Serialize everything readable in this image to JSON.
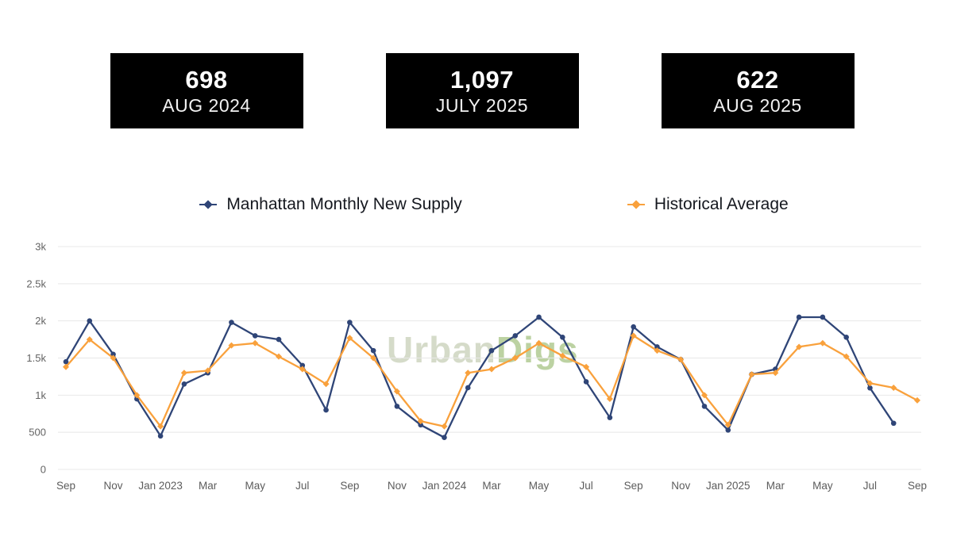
{
  "stats": [
    {
      "value": "698",
      "label": "AUG 2024"
    },
    {
      "value": "1,097",
      "label": "JULY 2025"
    },
    {
      "value": "622",
      "label": "AUG 2025"
    }
  ],
  "watermark": {
    "part1": "Urban",
    "part2": "Digs"
  },
  "chart_data": {
    "type": "line",
    "title": "",
    "xlabel": "",
    "ylabel": "",
    "grid": "horizontal",
    "legend_position": "top",
    "ylim": [
      0,
      3000
    ],
    "yticks": [
      {
        "value": 0,
        "label": "0"
      },
      {
        "value": 500,
        "label": "500"
      },
      {
        "value": 1000,
        "label": "1k"
      },
      {
        "value": 1500,
        "label": "1.5k"
      },
      {
        "value": 2000,
        "label": "2k"
      },
      {
        "value": 2500,
        "label": "2.5k"
      },
      {
        "value": 3000,
        "label": "3k"
      }
    ],
    "x": [
      "Sep 2022",
      "Oct 2022",
      "Nov 2022",
      "Dec 2022",
      "Jan 2023",
      "Feb 2023",
      "Mar 2023",
      "Apr 2023",
      "May 2023",
      "Jun 2023",
      "Jul 2023",
      "Aug 2023",
      "Sep 2023",
      "Oct 2023",
      "Nov 2023",
      "Dec 2023",
      "Jan 2024",
      "Feb 2024",
      "Mar 2024",
      "Apr 2024",
      "May 2024",
      "Jun 2024",
      "Jul 2024",
      "Aug 2024",
      "Sep 2024",
      "Oct 2024",
      "Nov 2024",
      "Dec 2024",
      "Jan 2025",
      "Feb 2025",
      "Mar 2025",
      "Apr 2025",
      "May 2025",
      "Jun 2025",
      "Jul 2025",
      "Aug 2025",
      "Sep 2025"
    ],
    "x_tick_every": 2,
    "x_tick_labels": [
      "Sep",
      "Nov",
      "Jan 2023",
      "Mar",
      "May",
      "Jul",
      "Sep",
      "Nov",
      "Jan 2024",
      "Mar",
      "May",
      "Jul",
      "Sep",
      "Nov",
      "Jan 2025",
      "Mar",
      "May",
      "Jul",
      "Sep"
    ],
    "series": [
      {
        "name": "Manhattan Monthly New Supply",
        "color": "#2f4577",
        "marker": "circle",
        "values": [
          1450,
          2000,
          1550,
          950,
          450,
          1150,
          1300,
          1980,
          1800,
          1750,
          1400,
          800,
          1980,
          1600,
          850,
          600,
          430,
          1100,
          1600,
          1800,
          2050,
          1780,
          1180,
          698,
          1920,
          1650,
          1480,
          850,
          530,
          1280,
          1350,
          2050,
          2050,
          1780,
          1097,
          622,
          null
        ]
      },
      {
        "name": "Historical Average",
        "color": "#f9a13c",
        "marker": "diamond",
        "values": [
          1380,
          1750,
          1500,
          1000,
          580,
          1300,
          1330,
          1670,
          1700,
          1520,
          1350,
          1150,
          1770,
          1500,
          1050,
          650,
          580,
          1300,
          1350,
          1500,
          1700,
          1530,
          1380,
          950,
          1800,
          1600,
          1480,
          1000,
          600,
          1280,
          1300,
          1650,
          1700,
          1520,
          1160,
          1100,
          930
        ]
      }
    ]
  }
}
